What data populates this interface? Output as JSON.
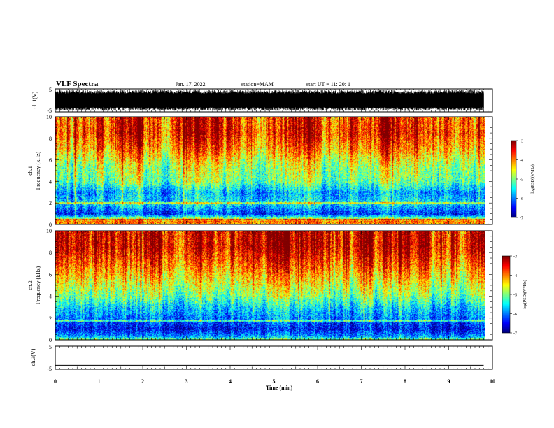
{
  "header": {
    "title": "VLF Spectra",
    "date": "Jan. 17, 2022",
    "station": "station=MAM",
    "start": "start UT =  11: 20: 1"
  },
  "chart_data": [
    {
      "type": "line",
      "panel": "ch1-waveform",
      "ylabel": "ch.1(V)",
      "ylim": [
        -5,
        5
      ],
      "yticks": [
        "5",
        "-5"
      ],
      "xlim": [
        0,
        10
      ],
      "description_free": true,
      "signal": {
        "kind": "dense-noise",
        "center": 0,
        "amplitude_range": [
          -4.5,
          4.5
        ]
      }
    },
    {
      "type": "heatmap",
      "panel": "ch1-spectrogram",
      "ylabel_line1": "ch.1",
      "ylabel_line2": "Frequency (kHz)",
      "ylim": [
        0,
        10
      ],
      "yticks": [
        "0",
        "2",
        "4",
        "6",
        "8",
        "10"
      ],
      "xlim": [
        0,
        9.8
      ],
      "colorbar": {
        "label": "log(PSD)(V²/Hz)",
        "range": [
          -7,
          -3
        ],
        "ticks": [
          "-3",
          "-4",
          "-5",
          "-6",
          "-7"
        ]
      },
      "profile_khz": [
        {
          "f": 0,
          "v": -4.2
        },
        {
          "f": 0.3,
          "v": -3.8
        },
        {
          "f": 0.6,
          "v": -5.0
        },
        {
          "f": 1.0,
          "v": -6.3
        },
        {
          "f": 2.0,
          "v": -5.5
        },
        {
          "f": 3.0,
          "v": -5.8
        },
        {
          "f": 4.0,
          "v": -5.0
        },
        {
          "f": 5.5,
          "v": -4.7
        },
        {
          "f": 7.0,
          "v": -4.0
        },
        {
          "f": 8.5,
          "v": -3.5
        },
        {
          "f": 10,
          "v": -3.6
        }
      ],
      "line_khz": [
        0.5,
        2.0
      ]
    },
    {
      "type": "heatmap",
      "panel": "ch2-spectrogram",
      "ylabel_line1": "ch.2",
      "ylabel_line2": "Frequency (kHz)",
      "ylim": [
        0,
        10
      ],
      "yticks": [
        "0",
        "2",
        "4",
        "6",
        "8",
        "10"
      ],
      "xlim": [
        0,
        9.8
      ],
      "colorbar": {
        "label": "log(PSD)(V²/Hz)",
        "range": [
          -7,
          -3
        ],
        "ticks": [
          "-3",
          "-4",
          "-5",
          "-6",
          "-7"
        ]
      },
      "profile_khz": [
        {
          "f": 0,
          "v": -4.8
        },
        {
          "f": 0.3,
          "v": -5.8
        },
        {
          "f": 1.0,
          "v": -6.5
        },
        {
          "f": 2.0,
          "v": -6.0
        },
        {
          "f": 3.0,
          "v": -5.6
        },
        {
          "f": 4.0,
          "v": -5.0
        },
        {
          "f": 5.5,
          "v": -4.4
        },
        {
          "f": 7.0,
          "v": -3.8
        },
        {
          "f": 8.5,
          "v": -3.3
        },
        {
          "f": 10,
          "v": -3.3
        }
      ],
      "line_khz": [
        1.8
      ]
    },
    {
      "type": "line",
      "panel": "ch3-waveform",
      "ylabel": "ch.3(V)",
      "ylim": [
        -5,
        5
      ],
      "yticks": [
        "5",
        "-5"
      ],
      "xlim": [
        0,
        10
      ],
      "series": [
        {
          "x": [
            0,
            9.8
          ],
          "values": [
            -3.3,
            -3.3
          ]
        }
      ]
    }
  ],
  "xaxis": {
    "label": "Time (min)",
    "range": [
      0,
      10
    ],
    "ticks": [
      "0",
      "1",
      "2",
      "3",
      "4",
      "5",
      "6",
      "7",
      "8",
      "9",
      "10"
    ]
  }
}
